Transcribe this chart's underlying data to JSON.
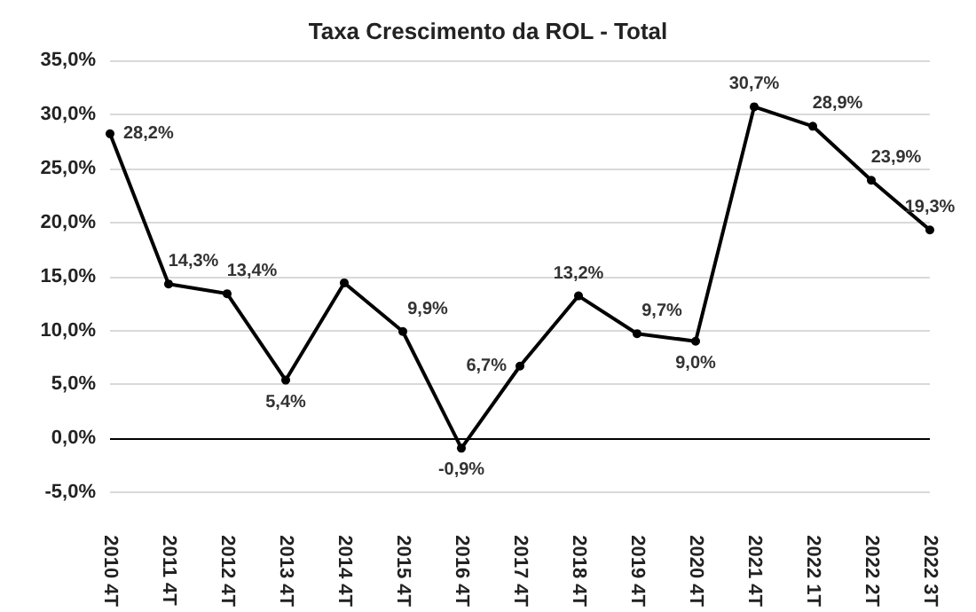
{
  "chart_data": {
    "type": "line",
    "title": "Taxa Crescimento da ROL - Total",
    "categories": [
      "2010 4T",
      "2011 4T",
      "2012 4T",
      "2013 4T",
      "2014 4T",
      "2015 4T",
      "2016 4T",
      "2017 4T",
      "2018 4T",
      "2019 4T",
      "2020 4T",
      "2021 4T",
      "2022 1T",
      "2022 2T",
      "2022 3T"
    ],
    "series": [
      {
        "color": "#000000",
        "values": [
          28.2,
          14.3,
          13.4,
          5.4,
          14.4,
          9.9,
          -0.9,
          6.7,
          13.2,
          9.7,
          9.0,
          30.7,
          28.9,
          23.9,
          19.3
        ],
        "value_labels": [
          "28,2%",
          "14,3%",
          "13,4%",
          "5,4%",
          null,
          "9,9%",
          "-0,9%",
          "6,7%",
          "13,2%",
          "9,7%",
          "9,0%",
          "30,7%",
          "28,9%",
          "23,9%",
          "19,3%"
        ]
      }
    ],
    "ylim": [
      -5,
      35
    ],
    "yticks": [
      {
        "value": -5,
        "label": "-5,0%"
      },
      {
        "value": 0,
        "label": "0,0%"
      },
      {
        "value": 5,
        "label": "5,0%"
      },
      {
        "value": 10,
        "label": "10,0%"
      },
      {
        "value": 15,
        "label": "15,0%"
      },
      {
        "value": 20,
        "label": "20,0%"
      },
      {
        "value": 25,
        "label": "25,0%"
      },
      {
        "value": 30,
        "label": "30,0%"
      },
      {
        "value": 35,
        "label": "35,0%"
      }
    ],
    "ref_lines": [
      {
        "axis": "y",
        "value": 0,
        "color": "#000000"
      }
    ],
    "grid": "y",
    "marker": "circle",
    "line_style": "solid"
  }
}
